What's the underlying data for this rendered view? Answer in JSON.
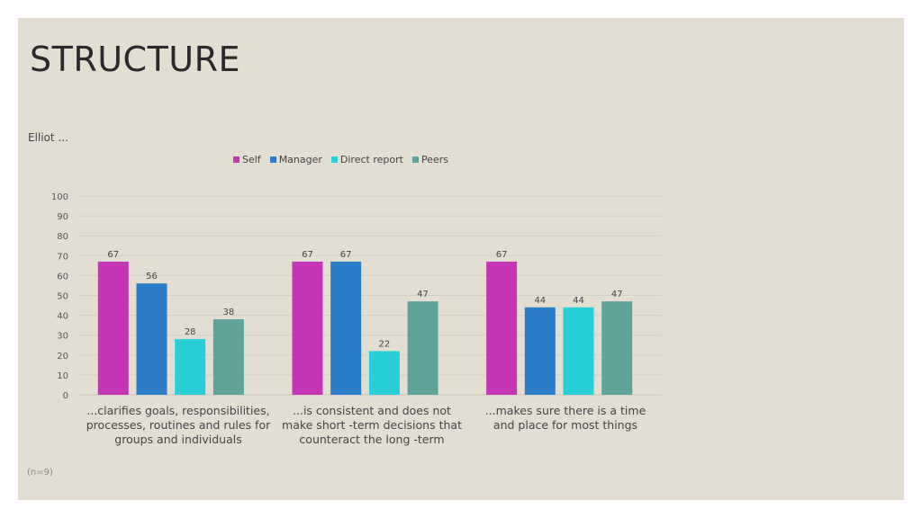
{
  "slide": {
    "title": "STRUCTURE",
    "footnote": "(n=9)"
  },
  "chart_data": {
    "type": "bar",
    "title": "Elliot ...",
    "categories": [
      "...clarifies goals, responsibilities, processes, routines and rules for groups and individuals",
      "...is consistent and does not make short -term decisions that counteract the long -term",
      "...makes sure there is a time and place for most things"
    ],
    "category_lines": [
      [
        "...clarifies goals, responsibilities,",
        "processes, routines and rules for",
        "groups and individuals"
      ],
      [
        "...is consistent and does not",
        "make short -term decisions that",
        "counteract the long -term"
      ],
      [
        "...makes sure there is a time",
        "and place for most things"
      ]
    ],
    "series": [
      {
        "name": "Self",
        "color": "#c536b6",
        "values": [
          67,
          67,
          67
        ]
      },
      {
        "name": "Manager",
        "color": "#2a7dc6",
        "values": [
          56,
          67,
          44
        ]
      },
      {
        "name": "Direct report",
        "color": "#29cfd7",
        "values": [
          28,
          22,
          44
        ]
      },
      {
        "name": "Peers",
        "color": "#5fa39b",
        "values": [
          38,
          47,
          47
        ]
      }
    ],
    "ylim": [
      0,
      100
    ],
    "yticks": [
      0,
      10,
      20,
      30,
      40,
      50,
      60,
      70,
      80,
      90,
      100
    ],
    "grid": true,
    "legend_position": "top-center",
    "data_labels": true
  }
}
